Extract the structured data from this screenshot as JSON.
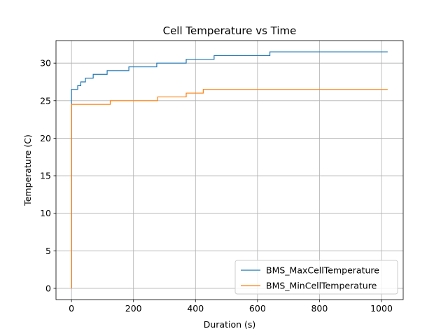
{
  "chart_data": {
    "type": "line",
    "title": "Cell Temperature vs Time",
    "xlabel": "Duration (s)",
    "ylabel": "Temperature (C)",
    "xlim": [
      -50,
      1070
    ],
    "ylim": [
      -1.5,
      33
    ],
    "xticks": [
      0,
      200,
      400,
      600,
      800,
      1000
    ],
    "yticks": [
      0,
      5,
      10,
      15,
      20,
      25,
      30
    ],
    "grid": true,
    "legend_position": "lower-right",
    "series": [
      {
        "name": "BMS_MaxCellTemperature",
        "color": "#1f77b4",
        "step": true,
        "x": [
          0,
          0,
          3,
          20,
          30,
          45,
          70,
          115,
          185,
          275,
          370,
          460,
          640,
          1020
        ],
        "y": [
          0,
          26.5,
          26.5,
          27.0,
          27.5,
          28.0,
          28.5,
          29.0,
          29.5,
          30.0,
          30.5,
          31.0,
          31.5,
          31.5
        ]
      },
      {
        "name": "BMS_MinCellTemperature",
        "color": "#ff7f0e",
        "step": true,
        "x": [
          0,
          0,
          3,
          125,
          278,
          370,
          425,
          1020
        ],
        "y": [
          0,
          24.5,
          24.5,
          25.0,
          25.5,
          26.0,
          26.5,
          26.5
        ]
      }
    ]
  }
}
